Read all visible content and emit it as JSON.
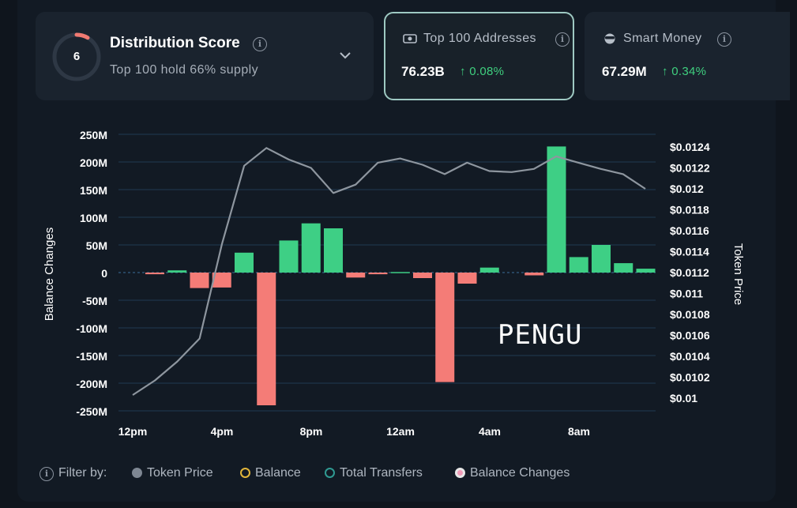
{
  "distribution": {
    "score": "6",
    "title": "Distribution Score",
    "subtitle": "Top 100 hold 66% supply"
  },
  "top100": {
    "label": "Top 100 Addresses",
    "value": "76.23B",
    "change": "0.08%"
  },
  "smart_money": {
    "label": "Smart Money",
    "value": "67.29M",
    "change": "0.34%"
  },
  "watermark": "PENGU",
  "filter": {
    "label": "Filter by:",
    "options": [
      "Token Price",
      "Balance",
      "Total Transfers",
      "Balance Changes"
    ]
  },
  "colors": {
    "positive": "#3ecf85",
    "negative": "#f47c77",
    "line": "#8e969f",
    "accent_ring": "#f07a72",
    "grid": "#203a52"
  },
  "chart_data": {
    "type": "bar",
    "ylabel": "Balance Changes",
    "y2label": "Token Price",
    "ylim": [
      -250,
      250
    ],
    "y_ticks": [
      "250M",
      "200M",
      "150M",
      "100M",
      "50M",
      "0",
      "-50M",
      "-100M",
      "-150M",
      "-200M",
      "-250M"
    ],
    "y2lim": [
      0.01,
      0.0124
    ],
    "y2_ticks": [
      "$0.0124",
      "$0.0122",
      "$0.012",
      "$0.0118",
      "$0.0116",
      "$0.0114",
      "$0.0112",
      "$0.011",
      "$0.0108",
      "$0.0106",
      "$0.0104",
      "$0.0102",
      "$0.01"
    ],
    "x_ticks": [
      "12pm",
      "4pm",
      "8pm",
      "12am",
      "4am",
      "8am"
    ],
    "series": [
      {
        "name": "Balance Changes",
        "type": "bar",
        "unit": "M",
        "values": [
          -3,
          4,
          -28,
          -27,
          36,
          -240,
          58,
          89,
          80,
          -9,
          -3,
          1,
          -10,
          -198,
          -20,
          9,
          0,
          -5,
          228,
          28,
          50,
          17,
          7
        ]
      },
      {
        "name": "Token Price",
        "type": "line",
        "values": [
          0.01003,
          0.01017,
          0.01035,
          0.01057,
          0.01147,
          0.01222,
          0.01239,
          0.01228,
          0.0122,
          0.01196,
          0.01204,
          0.01225,
          0.01229,
          0.01223,
          0.01214,
          0.01225,
          0.01217,
          0.01216,
          0.01219,
          0.01231,
          0.01225,
          0.01219,
          0.01214,
          0.012
        ]
      }
    ],
    "grid": true
  }
}
